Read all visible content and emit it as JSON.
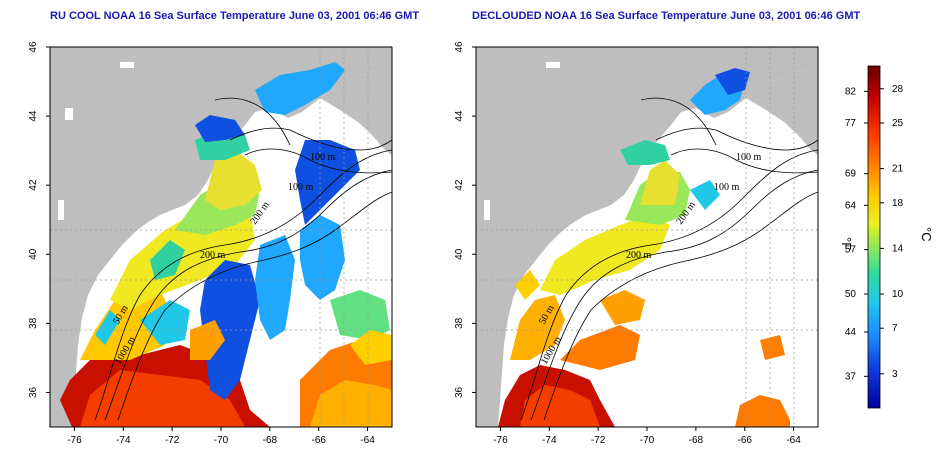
{
  "panels": [
    {
      "title": "RU COOL NOAA 16 Sea Surface Temperature June 03, 2001 06:46 GMT",
      "contour_labels": [
        "100 m",
        "100 m",
        "200 m",
        "200 m",
        "50 m",
        "1000 m"
      ]
    },
    {
      "title": "DECLOUDED NOAA 16 Sea Surface Temperature June 03, 2001 06:46 GMT",
      "contour_labels": [
        "100 m",
        "100 m",
        "200 m",
        "200 m",
        "50 m",
        "1000 m"
      ]
    }
  ],
  "axes": {
    "x_ticks": [
      "-76",
      "-74",
      "-72",
      "-70",
      "-68",
      "-66",
      "-64"
    ],
    "y_ticks": [
      "36",
      "38",
      "40",
      "42",
      "44",
      "46"
    ]
  },
  "colorbar": {
    "f_unit": "°F",
    "c_unit": "°C",
    "f_ticks": [
      "82",
      "77",
      "69",
      "64",
      "57",
      "50",
      "44",
      "37"
    ],
    "c_ticks": [
      "28",
      "25",
      "21",
      "18",
      "14",
      "10",
      "7",
      "3"
    ],
    "colors": [
      "#7a0000",
      "#c80000",
      "#ff3000",
      "#ff8000",
      "#ffc000",
      "#f0f000",
      "#a0f040",
      "#40e080",
      "#20d0d0",
      "#20a0ff",
      "#1050e0",
      "#0000a0"
    ]
  },
  "colors": {
    "land": "#bebebe",
    "title": "#1a1ab0",
    "background": "#ffffff"
  }
}
